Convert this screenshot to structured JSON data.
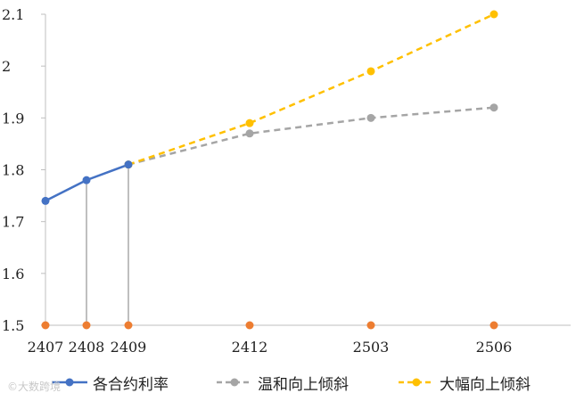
{
  "chart_data": {
    "type": "line",
    "title": "",
    "xlabel": "",
    "ylabel": "",
    "categories": [
      "2407",
      "2408",
      "2409",
      "2412",
      "2503",
      "2506"
    ],
    "ylim": [
      1.5,
      2.1
    ],
    "yticks": [
      "1.5",
      "1.6",
      "1.7",
      "1.8",
      "1.9",
      "2",
      "2.1"
    ],
    "grid": false,
    "legend_position": "bottom",
    "series": [
      {
        "name": "各合约利率",
        "color": "#4472C4",
        "style": "solid",
        "points": [
          {
            "x": "2407",
            "y": 1.74
          },
          {
            "x": "2408",
            "y": 1.78
          },
          {
            "x": "2409",
            "y": 1.81
          }
        ]
      },
      {
        "name": "温和向上倾斜",
        "color": "#A5A5A5",
        "style": "dashed",
        "points": [
          {
            "x": "2409",
            "y": 1.81
          },
          {
            "x": "2412",
            "y": 1.87
          },
          {
            "x": "2503",
            "y": 1.9
          },
          {
            "x": "2506",
            "y": 1.92
          }
        ]
      },
      {
        "name": "大幅向上倾斜",
        "color": "#FFC000",
        "style": "dashed",
        "points": [
          {
            "x": "2409",
            "y": 1.81
          },
          {
            "x": "2412",
            "y": 1.89
          },
          {
            "x": "2503",
            "y": 1.99
          },
          {
            "x": "2506",
            "y": 2.1
          }
        ]
      }
    ],
    "baseline_markers": {
      "color": "#ED7D31",
      "y": 1.5,
      "x": [
        "2407",
        "2408",
        "2409",
        "2412",
        "2503",
        "2506"
      ]
    },
    "drop_lines": [
      "2408",
      "2409"
    ]
  },
  "watermark": "©大数跨境"
}
